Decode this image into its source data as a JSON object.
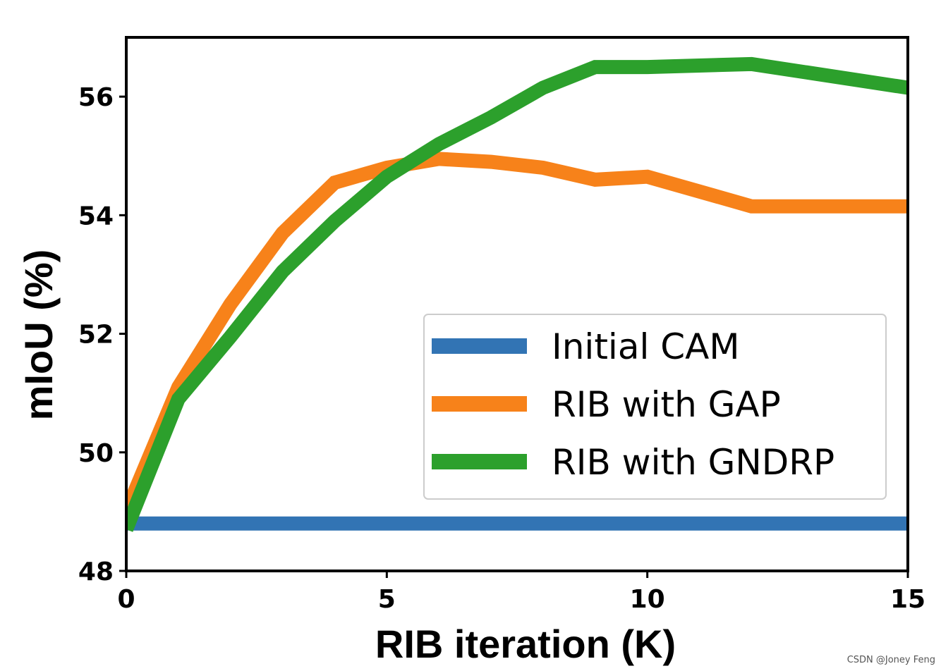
{
  "chart_data": {
    "type": "line",
    "xlabel": "RIB iteration (K)",
    "ylabel": "mIoU (%)",
    "xlim": [
      0,
      15
    ],
    "ylim": [
      48,
      57
    ],
    "xticks": [
      0,
      5,
      10,
      15
    ],
    "yticks": [
      48,
      50,
      52,
      54,
      56
    ],
    "grid": false,
    "legend_position": "lower-right",
    "series": [
      {
        "name": "Initial CAM",
        "color": "#3274b4",
        "x": [
          0,
          15
        ],
        "y": [
          48.8,
          48.8
        ]
      },
      {
        "name": "RIB with GAP",
        "color": "#f7821a",
        "x": [
          0,
          1,
          2,
          3,
          4,
          5,
          6,
          7,
          8,
          9,
          10,
          12,
          15
        ],
        "y": [
          49.0,
          51.1,
          52.5,
          53.7,
          54.55,
          54.8,
          54.95,
          54.9,
          54.8,
          54.6,
          54.65,
          54.15,
          54.15
        ]
      },
      {
        "name": "RIB with GNDRP",
        "color": "#2ca02c",
        "x": [
          0,
          1,
          2,
          3,
          4,
          5,
          6,
          7,
          8,
          9,
          10,
          12,
          15
        ],
        "y": [
          48.7,
          50.9,
          51.95,
          53.05,
          53.9,
          54.65,
          55.2,
          55.65,
          56.15,
          56.5,
          56.5,
          56.55,
          56.15
        ]
      }
    ]
  },
  "watermark": "CSDN @Joney Feng"
}
